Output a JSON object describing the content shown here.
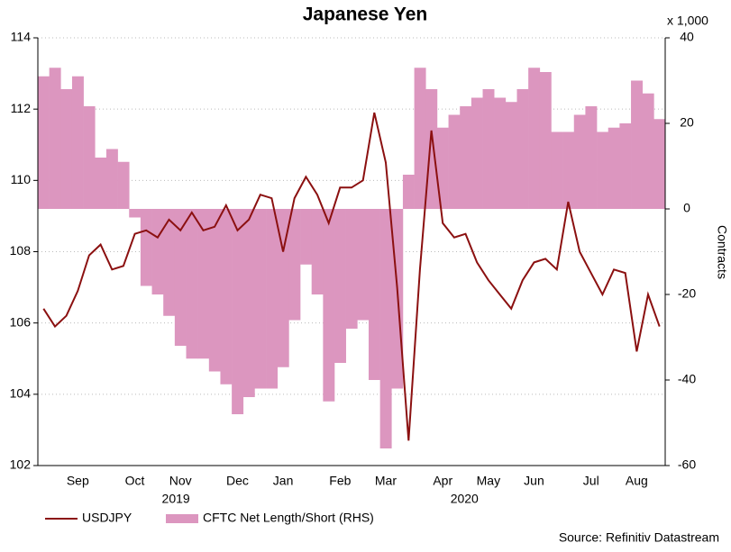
{
  "chart_data": {
    "type": "line",
    "title": "Japanese Yen",
    "categories": [
      null,
      null,
      null,
      "Sep",
      null,
      null,
      null,
      null,
      "Oct",
      null,
      null,
      null,
      "Nov",
      null,
      null,
      null,
      null,
      "Dec",
      null,
      null,
      null,
      "Jan",
      null,
      null,
      null,
      null,
      "Feb",
      null,
      null,
      null,
      "Mar",
      null,
      null,
      null,
      null,
      "Apr",
      null,
      null,
      null,
      "May",
      null,
      null,
      null,
      "Jun",
      null,
      null,
      null,
      null,
      "Jul",
      null,
      null,
      null,
      "Aug",
      null,
      null
    ],
    "year_labels": [
      "2019",
      "2020"
    ],
    "series": [
      {
        "name": "USDJPY",
        "type": "line",
        "color": "#8b1010",
        "values": [
          106.4,
          105.9,
          106.2,
          106.9,
          107.9,
          108.2,
          107.5,
          107.6,
          108.5,
          108.6,
          108.4,
          108.9,
          108.6,
          109.1,
          108.6,
          108.7,
          109.3,
          108.6,
          108.9,
          109.6,
          109.5,
          108.0,
          109.5,
          110.1,
          109.6,
          108.8,
          109.8,
          109.8,
          110.0,
          111.9,
          110.5,
          107.0,
          102.7,
          107.5,
          111.4,
          108.8,
          108.4,
          108.5,
          107.7,
          107.2,
          106.8,
          106.4,
          107.2,
          107.7,
          107.8,
          107.5,
          109.4,
          108.0,
          107.4,
          106.8,
          107.5,
          107.4,
          105.2,
          106.8,
          105.9
        ]
      },
      {
        "name": "CFTC Net Length/Short (RHS)",
        "type": "area",
        "axis": "y2",
        "color": "#dc96bf",
        "values": [
          31,
          33,
          28,
          31,
          24,
          12,
          14,
          11,
          -2,
          -18,
          -20,
          -25,
          -32,
          -35,
          -35,
          -38,
          -41,
          -48,
          -44,
          -42,
          -42,
          -37,
          -26,
          -13,
          -20,
          -45,
          -36,
          -28,
          -26,
          -40,
          -56,
          -42,
          8,
          33,
          28,
          19,
          22,
          24,
          26,
          28,
          26,
          25,
          28,
          33,
          32,
          18,
          18,
          22,
          24,
          18,
          19,
          20,
          30,
          27,
          21
        ]
      }
    ],
    "ylim": [
      102,
      114
    ],
    "yticks": [
      102,
      104,
      106,
      108,
      110,
      112,
      114
    ],
    "y2lim": [
      -60,
      40
    ],
    "y2ticks": [
      -60,
      -40,
      -20,
      0,
      20,
      40
    ],
    "y2_unit": "x 1,000",
    "y2label": "Contracts",
    "grid": true,
    "legend": "bottom-left",
    "source": "Source: Refinitiv Datastream"
  }
}
